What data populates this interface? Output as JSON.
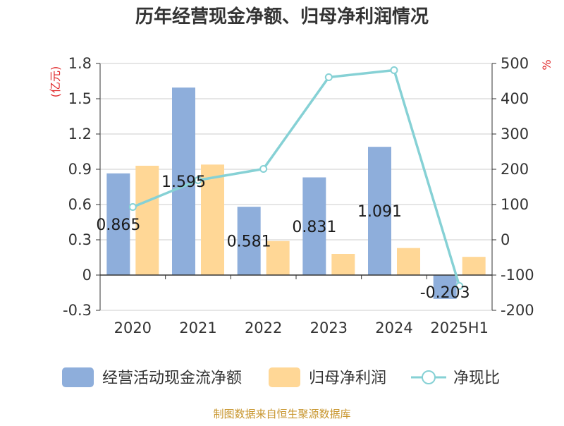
{
  "chart_data": {
    "type": "bar",
    "title": "历年经营现金净额、归母净利润情况",
    "categories": [
      "2020",
      "2021",
      "2022",
      "2023",
      "2024",
      "2025H1"
    ],
    "left_axis": {
      "unit": "(亿元)",
      "range": [
        -0.3,
        1.8
      ],
      "ticks": [
        "-0.3",
        "0",
        "0.3",
        "0.6",
        "0.9",
        "1.2",
        "1.5",
        "1.8"
      ]
    },
    "right_axis": {
      "unit": "%",
      "range": [
        -200,
        500
      ],
      "ticks": [
        "-200",
        "-100",
        "0",
        "100",
        "200",
        "300",
        "400",
        "500"
      ]
    },
    "grid": true,
    "legend_position": "bottom",
    "series": [
      {
        "name": "经营活动现金流净额",
        "kind": "bar",
        "axis": "left",
        "color": "#8eaedb",
        "values": [
          0.865,
          1.595,
          0.581,
          0.831,
          1.091,
          -0.203
        ],
        "labels": [
          "0.865",
          "1.595",
          "0.581",
          "0.831",
          "1.091",
          "-0.203"
        ]
      },
      {
        "name": "归母净利润",
        "kind": "bar",
        "axis": "left",
        "color": "#ffd796",
        "values": [
          0.93,
          0.94,
          0.29,
          0.18,
          0.23,
          0.155
        ]
      },
      {
        "name": "净现比",
        "kind": "line",
        "axis": "right",
        "color": "#86d1d5",
        "values": [
          93,
          169,
          201,
          461,
          481,
          -131
        ]
      }
    ],
    "source": "制图数据来自恒生聚源数据库"
  }
}
